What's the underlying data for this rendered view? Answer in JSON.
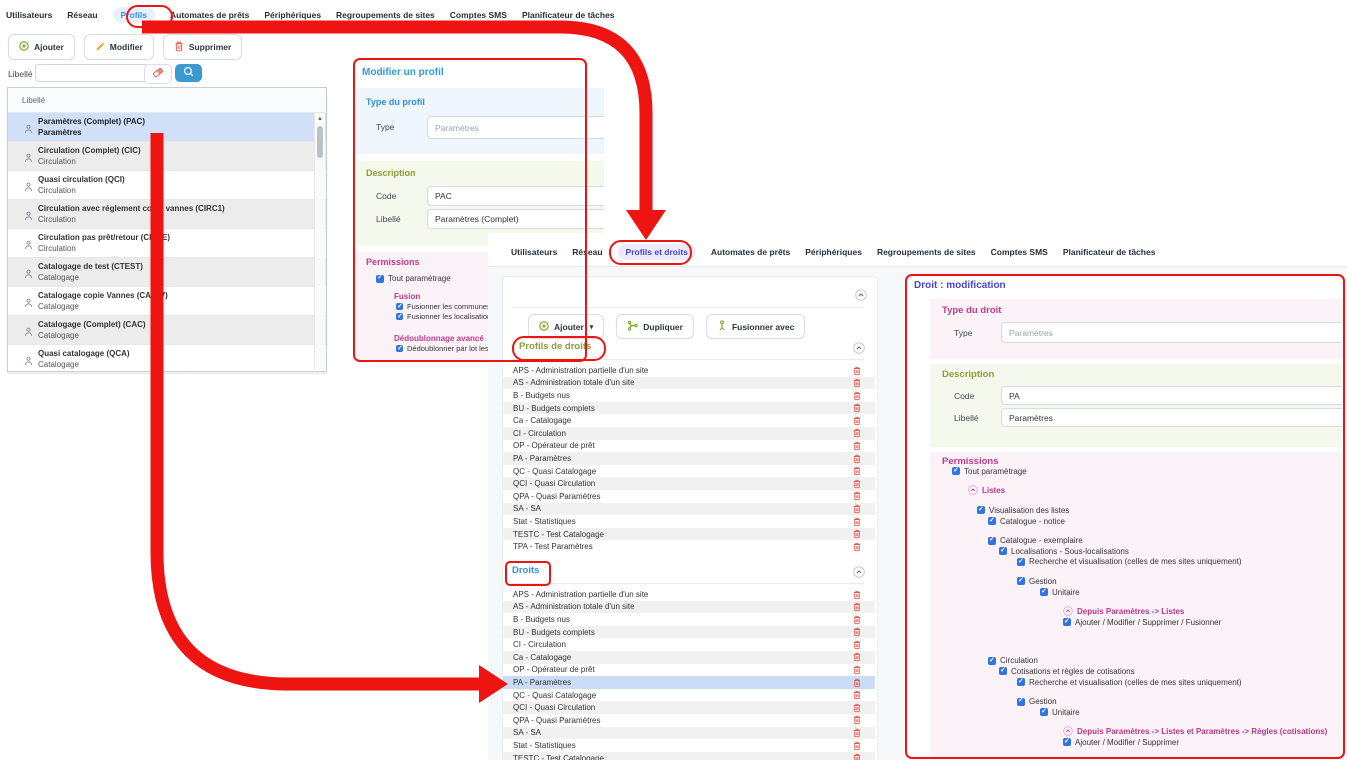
{
  "annotation_color": "#ee1412",
  "s1": {
    "tabs": [
      "Utilisateurs",
      "Réseau",
      "Profils",
      "Automates de prêts",
      "Périphériques",
      "Regroupements de sites",
      "Comptes SMS",
      "Planificateur de tâches"
    ],
    "active_index": 2,
    "toolbar": {
      "ajouter": "Ajouter",
      "modifier": "Modifier",
      "supprimer": "Supprimer"
    },
    "search": {
      "label": "Libellé",
      "value": ""
    },
    "list": {
      "header": "Libellé",
      "items": [
        {
          "title": "Paramètres (Complet) (PAC)",
          "subtitle": "Paramètres",
          "selected": true
        },
        {
          "title": "Circulation (Complet) (CIC)",
          "subtitle": "Circulation",
          "selected": false
        },
        {
          "title": "Quasi circulation (QCI)",
          "subtitle": "Circulation",
          "selected": false
        },
        {
          "title": "Circulation avec réglement copie vannes (CIRC1)",
          "subtitle": "Circulation",
          "selected": false
        },
        {
          "title": "Circulation pas prêt/retour (CICTE)",
          "subtitle": "Circulation",
          "selected": false
        },
        {
          "title": "Catalogage de test (CTEST)",
          "subtitle": "Catalogage",
          "selected": false
        },
        {
          "title": "Catalogage copie Vannes (CATAV)",
          "subtitle": "Catalogage",
          "selected": false
        },
        {
          "title": "Catalogage (Complet) (CAC)",
          "subtitle": "Catalogage",
          "selected": false
        },
        {
          "title": "Quasi catalogage (QCA)",
          "subtitle": "Catalogage",
          "selected": false
        }
      ]
    },
    "panel": {
      "title": "Modifier un profil",
      "type_section": {
        "title": "Type du profil",
        "type_label": "Type",
        "type_value": "Paramètres"
      },
      "description_section": {
        "title": "Description",
        "code_label": "Code",
        "code_value": "PAC",
        "libelle_label": "Libellé",
        "libelle_value": "Paramètres (Complet)"
      },
      "permissions_section": {
        "title": "Permissions",
        "tout": "Tout paramètrage",
        "fusion_title": "Fusion",
        "fusion_items": [
          "Fusionner les communes et les",
          "Fusionner les localisations et les"
        ],
        "dedoublonnage_title": "Dédoublonnage avancé",
        "dedoublonnage_items": [
          "Dédoublonner par lot les communes"
        ]
      }
    }
  },
  "s2": {
    "tabs": [
      "Utilisateurs",
      "Réseau",
      "Profils et droits",
      "Automates de prêts",
      "Périphériques",
      "Regroupements de sites",
      "Comptes SMS",
      "Planificateur de tâches"
    ],
    "active_index": 2,
    "toolbar": {
      "ajouter": "Ajouter",
      "dupliquer": "Dupliquer",
      "fusionner": "Fusionner avec"
    },
    "profils_droits": {
      "title": "Profils de droits",
      "items": [
        "APS - Administration partielle d'un site",
        "AS - Administration totale d'un site",
        "B - Budgets nus",
        "BU - Budgets complets",
        "Ca - Catalogage",
        "CI - Circulation",
        "OP - Opérateur de prêt",
        "PA - Paramètres",
        "QC - Quasi Catalogage",
        "QCI - Quasi Circulation",
        "QPA - Quasi Paramètres",
        "SA - SA",
        "Stat - Statistiques",
        "TESTC - Test Catalogage",
        "TPA - Test Paramètres"
      ]
    },
    "droits": {
      "title": "Droits",
      "selected_item": "PA - Paramètres",
      "items": [
        "APS - Administration partielle d'un site",
        "AS - Administration totale d'un site",
        "B - Budgets nus",
        "BU - Budgets complets",
        "CI - Circulation",
        "Ca - Catalogage",
        "OP - Opérateur de prêt",
        "PA - Paramètres",
        "QC - Quasi Catalogage",
        "QCI - Quasi Circulation",
        "QPA - Quasi Paramètres",
        "SA - SA",
        "Stat - Statistiques",
        "TESTC - Test Catalogage"
      ]
    },
    "detail": {
      "title": "Droit : modification",
      "type_section": {
        "title": "Type du droit",
        "type_label": "Type",
        "type_value": "Paramètres"
      },
      "description_section": {
        "title": "Description",
        "code_label": "Code",
        "code_value": "PA",
        "libelle_label": "Libellé",
        "libelle_value": "Paramètres"
      },
      "permissions": {
        "title": "Permissions",
        "items": [
          {
            "label": "Tout paramètrage",
            "kind": "check",
            "indent": 0,
            "gap": "none"
          },
          {
            "label": "Listes",
            "kind": "toggle",
            "indent": 1,
            "gap": "small"
          },
          {
            "label": "Visualisation des listes",
            "kind": "check",
            "indent": 2,
            "gap": "small"
          },
          {
            "label": "Catalogue - notice",
            "kind": "check",
            "indent": 3,
            "gap": "none"
          },
          {
            "label": "Catalogue - exemplaire",
            "kind": "check",
            "indent": 3,
            "gap": "small"
          },
          {
            "label": "Localisations - Sous-localisations",
            "kind": "check",
            "indent": 4,
            "gap": "none"
          },
          {
            "label": "Recherche et visualisation (celles de mes sites uniquement)",
            "kind": "check",
            "indent": 5,
            "gap": "none"
          },
          {
            "label": "Gestion",
            "kind": "check",
            "indent": 5,
            "gap": "small"
          },
          {
            "label": "Unitaire",
            "kind": "check",
            "indent": 6,
            "gap": "none"
          },
          {
            "label": "Depuis Paramètres -> Listes",
            "kind": "toggle",
            "indent": 7,
            "gap": "small"
          },
          {
            "label": "Ajouter / Modifier / Supprimer / Fusionner",
            "kind": "check",
            "indent": 7,
            "gap": "none"
          },
          {
            "label": "Circulation",
            "kind": "check",
            "indent": 3,
            "gap": "big"
          },
          {
            "label": "Cotisations et règles de cotisations",
            "kind": "check",
            "indent": 4,
            "gap": "none"
          },
          {
            "label": "Recherche et visualisation (celles de mes sites uniquement)",
            "kind": "check",
            "indent": 5,
            "gap": "none"
          },
          {
            "label": "Gestion",
            "kind": "check",
            "indent": 5,
            "gap": "small"
          },
          {
            "label": "Unitaire",
            "kind": "check",
            "indent": 6,
            "gap": "none"
          },
          {
            "label": "Depuis Paramètres -> Listes et Paramètres -> Règles (cotisations)",
            "kind": "toggle",
            "indent": 7,
            "gap": "small"
          },
          {
            "label": "Ajouter / Modifier / Supprimer",
            "kind": "check",
            "indent": 7,
            "gap": "none"
          }
        ]
      }
    }
  }
}
